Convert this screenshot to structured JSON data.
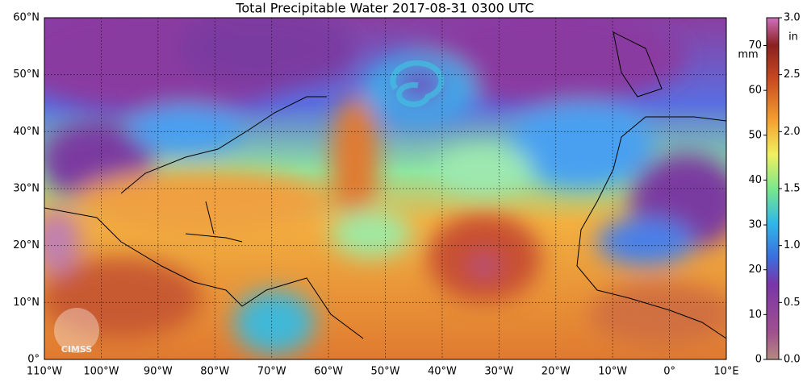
{
  "title": "Total Precipitable Water  2017-08-31 0300 UTC",
  "map": {
    "lat_lim": [
      0,
      60
    ],
    "lon_lim": [
      -110,
      10
    ],
    "lat_ticks": [
      {
        "value": 0,
        "label": "0°"
      },
      {
        "value": 10,
        "label": "10°N"
      },
      {
        "value": 20,
        "label": "20°N"
      },
      {
        "value": 30,
        "label": "30°N"
      },
      {
        "value": 40,
        "label": "40°N"
      },
      {
        "value": 50,
        "label": "50°N"
      },
      {
        "value": 60,
        "label": "60°N"
      }
    ],
    "lon_ticks": [
      {
        "value": -110,
        "label": "110°W"
      },
      {
        "value": -100,
        "label": "100°W"
      },
      {
        "value": -90,
        "label": "90°W"
      },
      {
        "value": -80,
        "label": "80°W"
      },
      {
        "value": -70,
        "label": "70°W"
      },
      {
        "value": -60,
        "label": "60°W"
      },
      {
        "value": -50,
        "label": "50°W"
      },
      {
        "value": -40,
        "label": "40°W"
      },
      {
        "value": -30,
        "label": "30°W"
      },
      {
        "value": -20,
        "label": "20°W"
      },
      {
        "value": -10,
        "label": "10°W"
      },
      {
        "value": 0,
        "label": "0°"
      },
      {
        "value": 10,
        "label": "10°E"
      }
    ],
    "logo": "CIMSS"
  },
  "colorbar": {
    "mm_unit": "mm",
    "in_unit": "in",
    "mm_lim": [
      0,
      76.2
    ],
    "in_lim": [
      0,
      3
    ],
    "mm_ticks": [
      0,
      10,
      20,
      30,
      40,
      50,
      60,
      70
    ],
    "in_ticks": [
      {
        "value": 0,
        "label": "0.0"
      },
      {
        "value": 0.5,
        "label": "0.5"
      },
      {
        "value": 1,
        "label": "1.0"
      },
      {
        "value": 1.5,
        "label": "1.5"
      },
      {
        "value": 2,
        "label": "2.0"
      },
      {
        "value": 2.5,
        "label": "2.5"
      },
      {
        "value": 3,
        "label": "3.0"
      }
    ]
  }
}
